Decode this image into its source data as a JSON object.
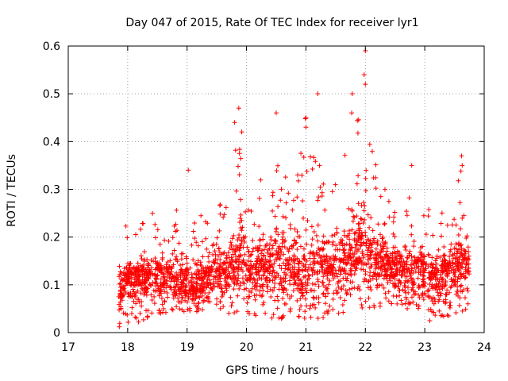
{
  "chart_data": {
    "type": "scatter",
    "title": "Day 047 of 2015, Rate Of TEC Index for receiver lyr1",
    "xlabel": "GPS time / hours",
    "ylabel": "ROTI / TECUs",
    "xlim": [
      17,
      24
    ],
    "ylim": [
      0,
      0.6
    ],
    "xticks": [
      "17",
      "18",
      "19",
      "20",
      "21",
      "22",
      "23",
      "24"
    ],
    "yticks": [
      "0",
      "0.1",
      "0.2",
      "0.3",
      "0.4",
      "0.5",
      "0.6"
    ],
    "grid": true,
    "marker": "plus",
    "color": "#ff0000",
    "series": [
      {
        "name": "ROTI",
        "density_profile": {
          "description": "Dense cloud of ROTI samples between 17.85 h and 23.75 h; values below are representative envelope points read from the plot",
          "x": [
            17.85,
            17.9,
            18.0,
            18.1,
            18.2,
            18.3,
            18.4,
            18.5,
            18.6,
            18.7,
            18.8,
            18.9,
            19.0,
            19.1,
            19.2,
            19.3,
            19.4,
            19.5,
            19.6,
            19.7,
            19.8,
            19.9,
            20.0,
            20.1,
            20.2,
            20.3,
            20.4,
            20.5,
            20.6,
            20.7,
            20.8,
            20.9,
            21.0,
            21.1,
            21.2,
            21.3,
            21.4,
            21.5,
            21.6,
            21.7,
            21.8,
            21.9,
            22.0,
            22.1,
            22.2,
            22.3,
            22.4,
            22.5,
            22.6,
            22.7,
            22.8,
            22.9,
            23.0,
            23.1,
            23.2,
            23.3,
            23.4,
            23.5,
            23.6,
            23.7,
            23.75
          ],
          "typical": [
            0.09,
            0.1,
            0.11,
            0.12,
            0.12,
            0.12,
            0.13,
            0.13,
            0.12,
            0.12,
            0.11,
            0.1,
            0.09,
            0.09,
            0.1,
            0.11,
            0.12,
            0.13,
            0.13,
            0.13,
            0.14,
            0.15,
            0.14,
            0.13,
            0.13,
            0.14,
            0.15,
            0.16,
            0.15,
            0.14,
            0.13,
            0.12,
            0.12,
            0.12,
            0.13,
            0.13,
            0.14,
            0.14,
            0.15,
            0.16,
            0.17,
            0.18,
            0.17,
            0.16,
            0.15,
            0.14,
            0.14,
            0.13,
            0.13,
            0.13,
            0.13,
            0.13,
            0.13,
            0.12,
            0.12,
            0.13,
            0.13,
            0.14,
            0.14,
            0.14,
            0.14
          ],
          "upper": [
            0.22,
            0.28,
            0.21,
            0.2,
            0.22,
            0.24,
            0.26,
            0.22,
            0.22,
            0.24,
            0.28,
            0.28,
            0.33,
            0.22,
            0.28,
            0.24,
            0.22,
            0.26,
            0.28,
            0.3,
            0.39,
            0.46,
            0.35,
            0.3,
            0.32,
            0.32,
            0.36,
            0.46,
            0.33,
            0.34,
            0.36,
            0.43,
            0.45,
            0.35,
            0.5,
            0.36,
            0.34,
            0.32,
            0.35,
            0.4,
            0.46,
            0.45,
            0.58,
            0.38,
            0.44,
            0.35,
            0.3,
            0.3,
            0.28,
            0.26,
            0.35,
            0.26,
            0.28,
            0.26,
            0.26,
            0.25,
            0.28,
            0.3,
            0.37,
            0.29,
            0.25
          ],
          "lower": [
            0.01,
            0.02,
            0.02,
            0.02,
            0.02,
            0.03,
            0.03,
            0.04,
            0.04,
            0.04,
            0.05,
            0.04,
            0.04,
            0.05,
            0.04,
            0.05,
            0.05,
            0.05,
            0.05,
            0.04,
            0.04,
            0.05,
            0.04,
            0.03,
            0.04,
            0.04,
            0.03,
            0.02,
            0.03,
            0.04,
            0.04,
            0.03,
            0.03,
            0.03,
            0.03,
            0.03,
            0.03,
            0.04,
            0.04,
            0.04,
            0.05,
            0.06,
            0.04,
            0.05,
            0.05,
            0.06,
            0.06,
            0.06,
            0.06,
            0.05,
            0.05,
            0.05,
            0.03,
            0.02,
            0.03,
            0.03,
            0.03,
            0.04,
            0.04,
            0.05,
            0.05
          ]
        },
        "notable_points": [
          {
            "x": 22.0,
            "y": 0.59
          },
          {
            "x": 21.98,
            "y": 0.54
          },
          {
            "x": 22.0,
            "y": 0.52
          },
          {
            "x": 21.2,
            "y": 0.5
          },
          {
            "x": 21.78,
            "y": 0.5
          },
          {
            "x": 19.87,
            "y": 0.47
          },
          {
            "x": 20.5,
            "y": 0.46
          },
          {
            "x": 19.8,
            "y": 0.44
          },
          {
            "x": 21.0,
            "y": 0.43
          },
          {
            "x": 21.0,
            "y": 0.45
          },
          {
            "x": 21.77,
            "y": 0.46
          },
          {
            "x": 23.62,
            "y": 0.37
          },
          {
            "x": 23.63,
            "y": 0.35
          },
          {
            "x": 19.02,
            "y": 0.34
          },
          {
            "x": 22.78,
            "y": 0.35
          },
          {
            "x": 19.92,
            "y": 0.42
          }
        ]
      }
    ]
  }
}
